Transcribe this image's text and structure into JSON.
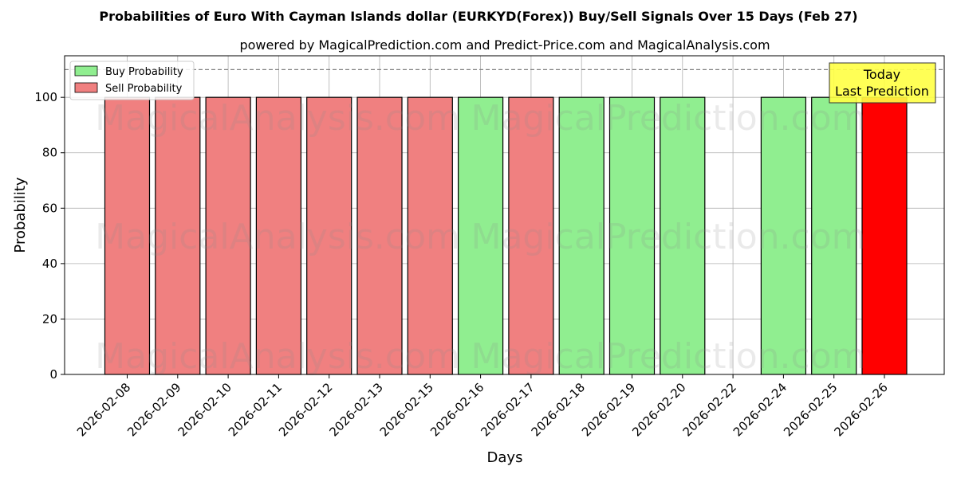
{
  "chart_data": {
    "type": "bar",
    "title": "Probabilities of Euro With Cayman Islands dollar (EURKYD(Forex)) Buy/Sell Signals Over 15 Days (Feb 27)",
    "subtitle": "powered by MagicalPrediction.com and Predict-Price.com and MagicalAnalysis.com",
    "xlabel": "Days",
    "ylabel": "Probability",
    "ylim": [
      0,
      115
    ],
    "yticks": [
      0,
      20,
      40,
      60,
      80,
      100
    ],
    "reference_line": 110,
    "grid": true,
    "legend_position": "top-left",
    "categories": [
      "2026-02-08",
      "2026-02-09",
      "2026-02-10",
      "2026-02-11",
      "2026-02-12",
      "2026-02-13",
      "2026-02-15",
      "2026-02-16",
      "2026-02-17",
      "2026-02-18",
      "2026-02-19",
      "2026-02-20",
      "2026-02-22",
      "2026-02-24",
      "2026-02-25",
      "2026-02-26"
    ],
    "series": [
      {
        "name": "Buy Probability",
        "color": "#90ee90",
        "values": [
          0,
          0,
          0,
          0,
          0,
          0,
          0,
          100,
          0,
          100,
          100,
          100,
          0,
          100,
          100,
          0
        ]
      },
      {
        "name": "Sell Probability",
        "color": "#f08080",
        "values": [
          100,
          100,
          100,
          100,
          100,
          100,
          100,
          0,
          100,
          0,
          0,
          0,
          0,
          0,
          0,
          100
        ]
      }
    ],
    "highlight": {
      "index": 15,
      "color": "#ff0000"
    },
    "annotation": {
      "line1": "Today",
      "line2": "Last Prediction"
    },
    "watermarks": [
      "MagicalAnalysis.com",
      "MagicalPrediction.com"
    ]
  }
}
